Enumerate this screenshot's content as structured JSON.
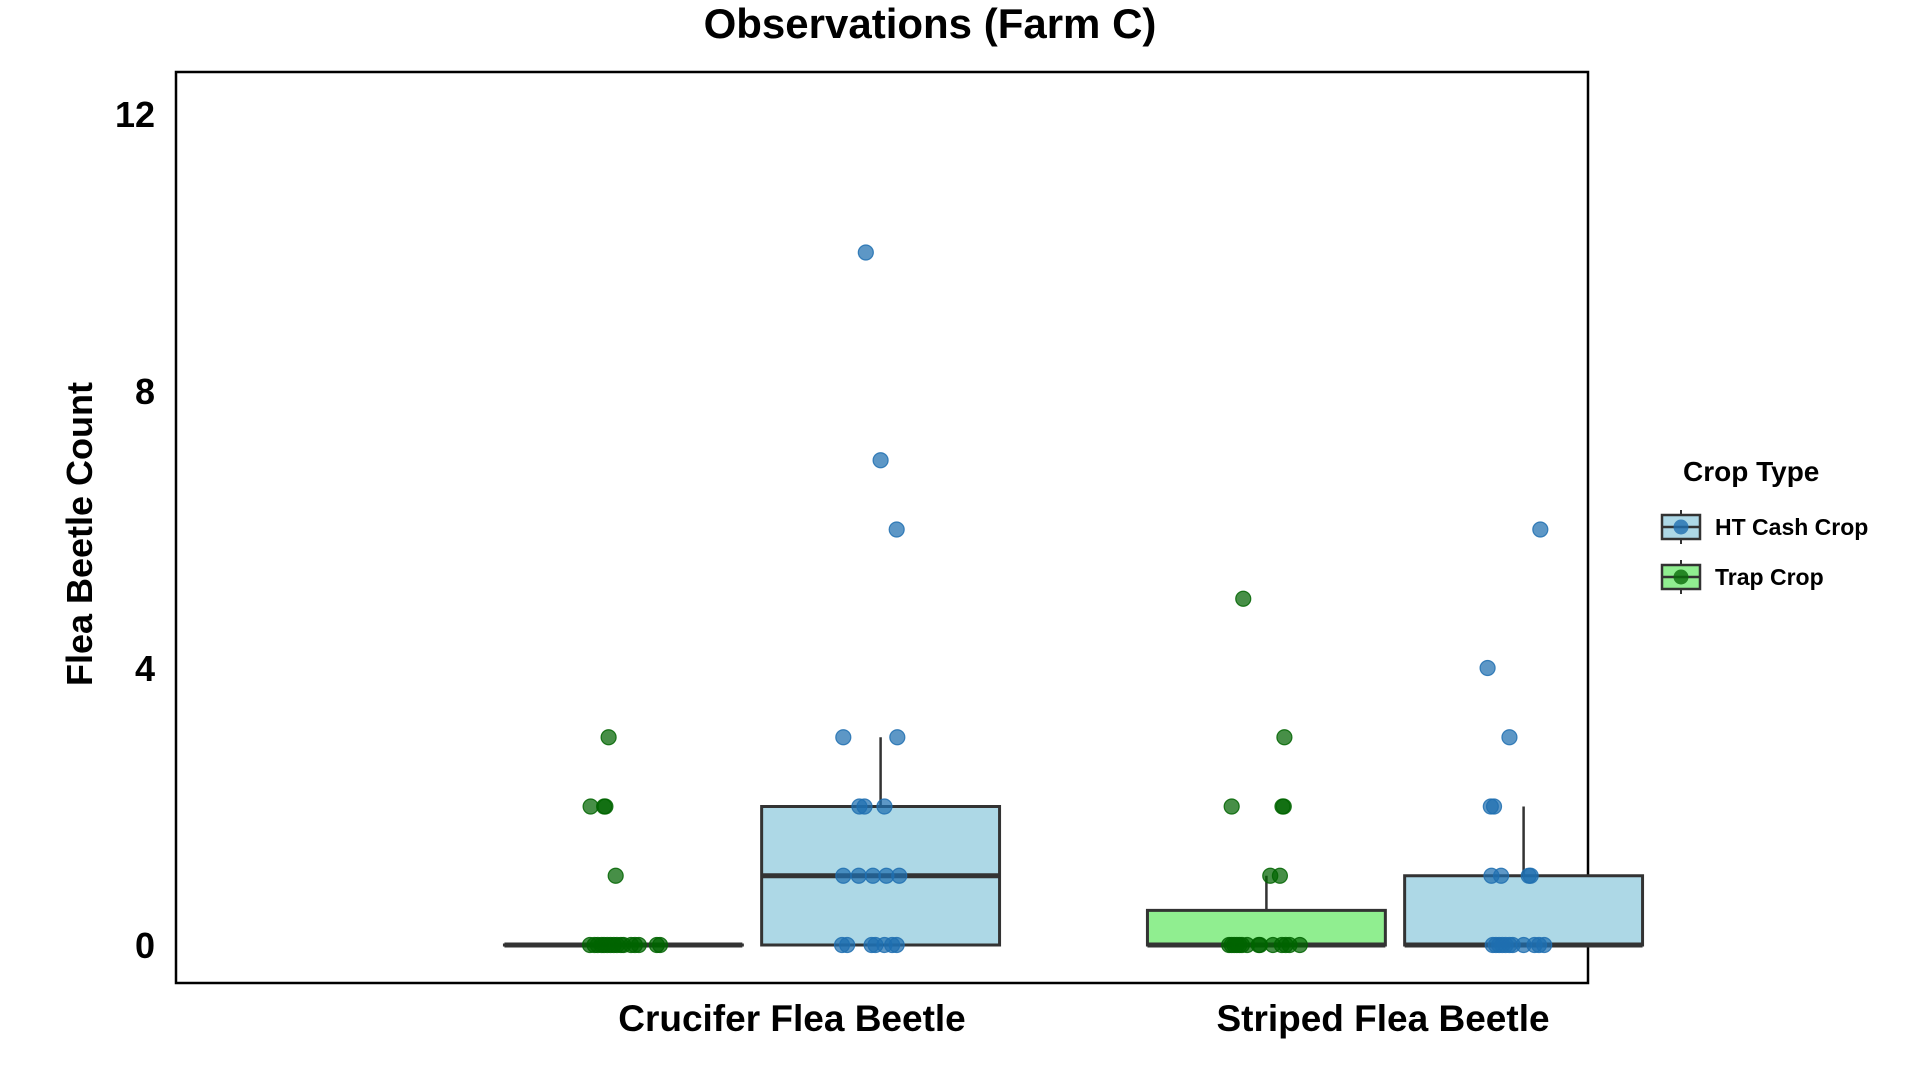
{
  "chart_data": {
    "type": "box",
    "title": "Observations (Farm C)",
    "xlabel": "",
    "ylabel": "Flea Beetle Count",
    "ylim": [
      -0.6,
      12.5
    ],
    "yticks": [
      0,
      4,
      8,
      12
    ],
    "grid": false,
    "categories": [
      "Crucifer Flea Beetle",
      "Striped Flea Beetle"
    ],
    "legend": {
      "title": "Crop Type",
      "position": "right",
      "entries": [
        {
          "name": "HT Cash Crop",
          "fill": "#ADD8E6",
          "point": "#1f6fb0"
        },
        {
          "name": "Trap Crop",
          "fill": "#90EE90",
          "point": "#0a6b0a"
        }
      ]
    },
    "series": [
      {
        "name": "Trap Crop",
        "fill": "#90EE90",
        "point_color": "#006400",
        "offset": -0.2,
        "boxes": [
          {
            "category": "Crucifer Flea Beetle",
            "q1": 0,
            "median": 0,
            "q3": 0,
            "whisker_low": 0,
            "whisker_high": 0
          },
          {
            "category": "Striped Flea Beetle",
            "q1": 0,
            "median": 0,
            "q3": 0.5,
            "whisker_low": 0,
            "whisker_high": 1
          }
        ],
        "points": [
          {
            "category": 0,
            "y": 3,
            "jitter": -0.023
          },
          {
            "category": 0,
            "y": 2,
            "jitter": -0.051
          },
          {
            "category": 0,
            "y": 2,
            "jitter": -0.03
          },
          {
            "category": 0,
            "y": 2,
            "jitter": -0.028
          },
          {
            "category": 0,
            "y": 1,
            "jitter": -0.012
          },
          {
            "category": 0,
            "y": 0,
            "jitter": -0.052
          },
          {
            "category": 0,
            "y": 0,
            "jitter": -0.045
          },
          {
            "category": 0,
            "y": 0,
            "jitter": -0.04
          },
          {
            "category": 0,
            "y": 0,
            "jitter": -0.034
          },
          {
            "category": 0,
            "y": 0,
            "jitter": -0.03
          },
          {
            "category": 0,
            "y": 0,
            "jitter": -0.025
          },
          {
            "category": 0,
            "y": 0,
            "jitter": -0.02
          },
          {
            "category": 0,
            "y": 0,
            "jitter": -0.015
          },
          {
            "category": 0,
            "y": 0,
            "jitter": -0.01
          },
          {
            "category": 0,
            "y": 0,
            "jitter": -0.004
          },
          {
            "category": 0,
            "y": 0,
            "jitter": 0.0
          },
          {
            "category": 0,
            "y": 0,
            "jitter": 0.012
          },
          {
            "category": 0,
            "y": 0,
            "jitter": 0.018
          },
          {
            "category": 0,
            "y": 0,
            "jitter": 0.024
          },
          {
            "category": 0,
            "y": 0,
            "jitter": 0.052
          },
          {
            "category": 0,
            "y": 0,
            "jitter": 0.057
          },
          {
            "category": 1,
            "y": 5,
            "jitter": -0.036
          },
          {
            "category": 1,
            "y": 3,
            "jitter": 0.028
          },
          {
            "category": 1,
            "y": 2,
            "jitter": -0.054
          },
          {
            "category": 1,
            "y": 2,
            "jitter": 0.025
          },
          {
            "category": 1,
            "y": 2,
            "jitter": 0.027
          },
          {
            "category": 1,
            "y": 1,
            "jitter": 0.006
          },
          {
            "category": 1,
            "y": 1,
            "jitter": 0.021
          },
          {
            "category": 1,
            "y": 0,
            "jitter": -0.058
          },
          {
            "category": 1,
            "y": 0,
            "jitter": -0.054
          },
          {
            "category": 1,
            "y": 0,
            "jitter": -0.05
          },
          {
            "category": 1,
            "y": 0,
            "jitter": -0.046
          },
          {
            "category": 1,
            "y": 0,
            "jitter": -0.042
          },
          {
            "category": 1,
            "y": 0,
            "jitter": -0.038
          },
          {
            "category": 1,
            "y": 0,
            "jitter": -0.03
          },
          {
            "category": 1,
            "y": 0,
            "jitter": -0.012
          },
          {
            "category": 1,
            "y": 0,
            "jitter": -0.01
          },
          {
            "category": 1,
            "y": 0,
            "jitter": 0.01
          },
          {
            "category": 1,
            "y": 0,
            "jitter": 0.024
          },
          {
            "category": 1,
            "y": 0,
            "jitter": 0.03
          },
          {
            "category": 1,
            "y": 0,
            "jitter": 0.036
          },
          {
            "category": 1,
            "y": 0,
            "jitter": 0.052
          }
        ]
      },
      {
        "name": "HT Cash Crop",
        "fill": "#ADD8E6",
        "point_color": "#1f6fb0",
        "offset": 0.2,
        "boxes": [
          {
            "category": "Crucifer Flea Beetle",
            "q1": 0,
            "median": 1,
            "q3": 2,
            "whisker_low": 0,
            "whisker_high": 3
          },
          {
            "category": "Striped Flea Beetle",
            "q1": 0,
            "median": 0,
            "q3": 1,
            "whisker_low": 0,
            "whisker_high": 2
          }
        ],
        "points": [
          {
            "category": 0,
            "y": 10,
            "jitter": -0.023
          },
          {
            "category": 0,
            "y": 7,
            "jitter": 0.0
          },
          {
            "category": 0,
            "y": 6,
            "jitter": 0.025
          },
          {
            "category": 0,
            "y": 3,
            "jitter": -0.058
          },
          {
            "category": 0,
            "y": 3,
            "jitter": 0.026
          },
          {
            "category": 0,
            "y": 2,
            "jitter": -0.033
          },
          {
            "category": 0,
            "y": 2,
            "jitter": -0.025
          },
          {
            "category": 0,
            "y": 2,
            "jitter": 0.006
          },
          {
            "category": 0,
            "y": 1,
            "jitter": -0.058
          },
          {
            "category": 0,
            "y": 1,
            "jitter": -0.034
          },
          {
            "category": 0,
            "y": 1,
            "jitter": -0.012
          },
          {
            "category": 0,
            "y": 1,
            "jitter": 0.009
          },
          {
            "category": 0,
            "y": 1,
            "jitter": 0.029
          },
          {
            "category": 0,
            "y": 0,
            "jitter": -0.06
          },
          {
            "category": 0,
            "y": 0,
            "jitter": -0.052
          },
          {
            "category": 0,
            "y": 0,
            "jitter": -0.014
          },
          {
            "category": 0,
            "y": 0,
            "jitter": -0.008
          },
          {
            "category": 0,
            "y": 0,
            "jitter": 0.006
          },
          {
            "category": 0,
            "y": 0,
            "jitter": 0.018
          },
          {
            "category": 0,
            "y": 0,
            "jitter": 0.025
          },
          {
            "category": 1,
            "y": 6,
            "jitter": 0.026
          },
          {
            "category": 1,
            "y": 4,
            "jitter": -0.056
          },
          {
            "category": 1,
            "y": 3,
            "jitter": -0.022
          },
          {
            "category": 1,
            "y": 2,
            "jitter": -0.051
          },
          {
            "category": 1,
            "y": 2,
            "jitter": -0.046
          },
          {
            "category": 1,
            "y": 1,
            "jitter": -0.05
          },
          {
            "category": 1,
            "y": 1,
            "jitter": -0.035
          },
          {
            "category": 1,
            "y": 1,
            "jitter": 0.008
          },
          {
            "category": 1,
            "y": 1,
            "jitter": 0.011
          },
          {
            "category": 1,
            "y": 0,
            "jitter": -0.048
          },
          {
            "category": 1,
            "y": 0,
            "jitter": -0.043
          },
          {
            "category": 1,
            "y": 0,
            "jitter": -0.038
          },
          {
            "category": 1,
            "y": 0,
            "jitter": -0.033
          },
          {
            "category": 1,
            "y": 0,
            "jitter": -0.028
          },
          {
            "category": 1,
            "y": 0,
            "jitter": -0.022
          },
          {
            "category": 1,
            "y": 0,
            "jitter": -0.017
          },
          {
            "category": 1,
            "y": 0,
            "jitter": 0.0
          },
          {
            "category": 1,
            "y": 0,
            "jitter": 0.017
          },
          {
            "category": 1,
            "y": 0,
            "jitter": 0.024
          },
          {
            "category": 1,
            "y": 0,
            "jitter": 0.032
          }
        ]
      }
    ]
  }
}
